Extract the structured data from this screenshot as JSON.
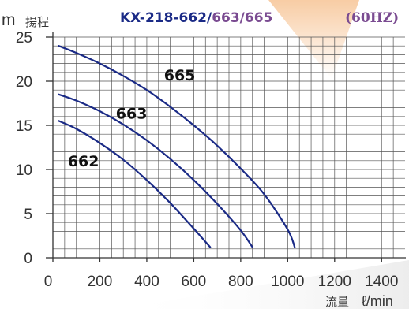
{
  "header": {
    "title_prefix": "KX-218-662/",
    "title_suffix_1": "663/665",
    "title_unit": "(60HZ)",
    "y_unit": "m",
    "y_label_jp": "揚程",
    "x_label_jp": "流量",
    "x_unit": "ℓ/min"
  },
  "colors": {
    "title_dark": "#1a2a86",
    "title_light": "#7a4b91",
    "unit": "#7a4b91",
    "curve": "#1a2a86",
    "grid": "#555555",
    "accent_bg": "#f2a35a"
  },
  "chart_data": {
    "type": "line",
    "xlabel": "流量 ℓ/min",
    "ylabel": "m 揚程",
    "xlim": [
      0,
      1500
    ],
    "ylim": [
      0,
      25
    ],
    "x_ticks": [
      "0",
      "200",
      "400",
      "600",
      "800",
      "1000",
      "1200",
      "1400"
    ],
    "y_ticks": [
      "0",
      "5",
      "10",
      "15",
      "20",
      "25"
    ],
    "grid": true,
    "series": [
      {
        "name": "662",
        "x": [
          25,
          100,
          200,
          300,
          400,
          500,
          600,
          670
        ],
        "y": [
          15.5,
          14.6,
          13.0,
          11.1,
          8.8,
          6.2,
          3.3,
          1.2
        ]
      },
      {
        "name": "663",
        "x": [
          25,
          100,
          200,
          300,
          400,
          500,
          600,
          700,
          800,
          850
        ],
        "y": [
          18.5,
          17.8,
          16.6,
          15.1,
          13.3,
          11.2,
          8.8,
          6.1,
          3.1,
          1.2
        ]
      },
      {
        "name": "665",
        "x": [
          25,
          100,
          200,
          300,
          400,
          500,
          600,
          700,
          800,
          900,
          1000,
          1030
        ],
        "y": [
          24.0,
          23.2,
          22.0,
          20.6,
          19.0,
          17.1,
          15.0,
          12.7,
          10.1,
          7.2,
          3.2,
          1.2
        ]
      }
    ]
  }
}
